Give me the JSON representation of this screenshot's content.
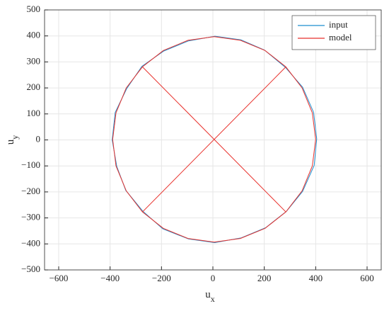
{
  "chart_data": {
    "type": "line",
    "xlabel": {
      "text": "u",
      "sub": "x"
    },
    "ylabel": {
      "text": "u",
      "sub": "y"
    },
    "xlim": [
      -655,
      655
    ],
    "ylim": [
      -500,
      500
    ],
    "xticks": [
      {
        "value": -600,
        "label": "−600"
      },
      {
        "value": -400,
        "label": "−400"
      },
      {
        "value": -200,
        "label": "−200"
      },
      0,
      200,
      400,
      600
    ],
    "yticks": [
      {
        "value": -500,
        "label": "−500"
      },
      {
        "value": -400,
        "label": "−400"
      },
      {
        "value": -300,
        "label": "−300"
      },
      {
        "value": -200,
        "label": "−200"
      },
      {
        "value": -100,
        "label": "−100"
      },
      0,
      100,
      200,
      300,
      400,
      500
    ],
    "grid": true,
    "legend": "northeast",
    "series": [
      {
        "name": "input",
        "color": "#1f8fcf",
        "x": [
          404,
          392,
          349,
          282,
          200,
          109,
          8,
          -95,
          -191,
          -276,
          -335,
          -380,
          -392,
          -374,
          -339,
          -272,
          -195,
          -95,
          7,
          109,
          205,
          286,
          349,
          394,
          404
        ],
        "y": [
          4,
          106,
          203,
          279,
          346,
          385,
          399,
          381,
          342,
          283,
          198,
          106,
          0,
          -102,
          -194,
          -275,
          -342,
          -381,
          -395,
          -377,
          -338,
          -275,
          -198,
          -98,
          4
        ]
      },
      {
        "name": "model",
        "color": "#e8322d",
        "x": [
          400,
          387,
          347,
          284,
          203,
          107,
          5,
          -97,
          -193,
          -274,
          -337,
          -377,
          -390,
          -377,
          -337,
          -274,
          -193,
          -97,
          5,
          107,
          203,
          284,
          347,
          387,
          400,
          null,
          -274,
          284,
          null,
          -274,
          284
        ],
        "y": [
          2,
          104,
          200,
          281,
          344,
          383,
          397,
          383,
          344,
          281,
          200,
          104,
          2,
          -100,
          -196,
          -277,
          -340,
          -379,
          -393,
          -379,
          -340,
          -277,
          -196,
          -100,
          2,
          null,
          281,
          -277,
          null,
          -277,
          281
        ]
      }
    ]
  }
}
